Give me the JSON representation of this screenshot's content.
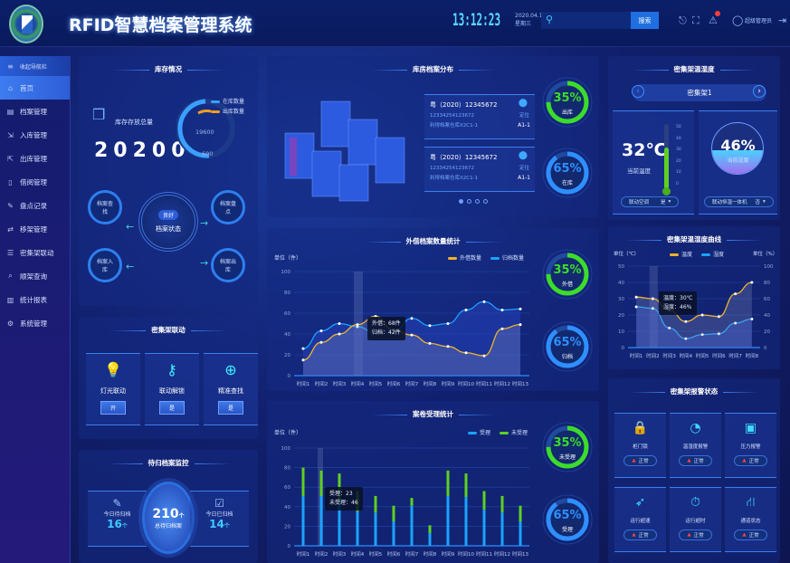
{
  "header": {
    "title": "RFID智慧档案管理系统",
    "time": "13:12:23",
    "date": "2020.04.13",
    "weekday": "星期三",
    "search_placeholder": "",
    "search_label": "搜索",
    "user": "超级管理员",
    "notification_count_visible": true
  },
  "sidebar": {
    "collapse_label": "收起导航栏",
    "items": [
      {
        "label": "首页",
        "icon": "home-icon",
        "active": true
      },
      {
        "label": "档案管理",
        "icon": "file-icon"
      },
      {
        "label": "入库管理",
        "icon": "inbound-icon"
      },
      {
        "label": "出库管理",
        "icon": "outbound-icon"
      },
      {
        "label": "借阅管理",
        "icon": "borrow-icon"
      },
      {
        "label": "盘点记录",
        "icon": "pencil-icon"
      },
      {
        "label": "移架管理",
        "icon": "move-icon"
      },
      {
        "label": "密集架联动",
        "icon": "shelf-icon"
      },
      {
        "label": "顺架查询",
        "icon": "query-icon"
      },
      {
        "label": "统计报表",
        "icon": "chart-icon"
      },
      {
        "label": "系统管理",
        "icon": "settings-icon"
      }
    ]
  },
  "inventory": {
    "title": "库存情况",
    "total_label": "库存存放总量",
    "total": "20200",
    "legend_in": "在库数量",
    "legend_out": "出库数量",
    "in_value": "19600",
    "out_value": "600",
    "status_badge": "良好",
    "status_label": "档案状态",
    "nodes": [
      "档案查找",
      "档案盘点",
      "档案入库",
      "档案出库"
    ]
  },
  "linkage": {
    "title": "密集架联动",
    "items": [
      {
        "label": "灯光联动",
        "value": "开",
        "icon": "bulb-icon"
      },
      {
        "label": "联动解锁",
        "value": "是",
        "icon": "key-icon"
      },
      {
        "label": "精准查找",
        "value": "是",
        "icon": "locate-plus-icon"
      }
    ]
  },
  "pending": {
    "title": "待归档案监控",
    "today_pending_label": "今日待归档",
    "today_pending": "16",
    "total": "210",
    "total_label": "总待归档案",
    "today_done_label": "今日已归档",
    "today_done": "14",
    "unit": "个"
  },
  "distribution": {
    "title": "库房档案分布",
    "records": [
      {
        "code": "粤（2020）12345672",
        "sub": "12334254123672",
        "location": "利得档案仓库X2C1-1",
        "pos_label": "定位",
        "pos": "A1-1"
      },
      {
        "code": "粤（2020）12345672",
        "sub": "12334254123672",
        "location": "利得档案仓库X2C1-1",
        "pos_label": "定位",
        "pos": "A1-1"
      }
    ],
    "carousel_pages": 4,
    "carousel_active": 0,
    "rings": [
      {
        "pct": "35%",
        "label": "出库",
        "color": "#3cdc2a",
        "value": 35
      },
      {
        "pct": "65%",
        "label": "在库",
        "color": "#2e8fff",
        "value": 65
      }
    ]
  },
  "lend": {
    "title": "外借档案数量统计",
    "unit_label": "单位（件）",
    "rings": [
      {
        "pct": "35%",
        "label": "外借",
        "color": "#3cdc2a",
        "value": 35
      },
      {
        "pct": "65%",
        "label": "归档",
        "color": "#2e8fff",
        "value": 65
      }
    ],
    "tooltip": [
      "外借：68件",
      "归档：42件"
    ]
  },
  "accept": {
    "title": "案卷受理统计",
    "unit_label": "单位（件）",
    "rings": [
      {
        "pct": "35%",
        "label": "未受理",
        "color": "#3cdc2a",
        "value": 35
      },
      {
        "pct": "65%",
        "label": "受理",
        "color": "#2e8fff",
        "value": 65
      }
    ],
    "tooltip": [
      "受理：23",
      "未受理：46"
    ]
  },
  "climate": {
    "title": "密集架温湿度",
    "shelf": "密集架1",
    "temp": "32℃",
    "temp_label": "当前温度",
    "temp_ticks": [
      "50",
      "40",
      "30",
      "20",
      "10",
      "0"
    ],
    "temp_level": 32,
    "humidity": "46%",
    "humidity_label": "当前湿度",
    "humidity_level": 46,
    "ac_label": "联动空调",
    "ac_value": "是",
    "dehum_label": "联动恒湿一体机",
    "dehum_value": "否"
  },
  "curve": {
    "title": "密集架温湿度曲线",
    "unit_left": "单位（℃）",
    "unit_right": "单位（%）",
    "tooltip": [
      "温度：30℃",
      "湿度：46%"
    ]
  },
  "alarm": {
    "title": "密集架报警状态",
    "items": [
      {
        "label": "柜门锁",
        "status": "正常",
        "icon": "lock-icon"
      },
      {
        "label": "温湿度报警",
        "status": "正常",
        "icon": "gauge-icon"
      },
      {
        "label": "压力报警",
        "status": "正常",
        "icon": "meter-icon"
      },
      {
        "label": "运行超速",
        "status": "正常",
        "icon": "rocket-icon"
      },
      {
        "label": "运行超时",
        "status": "正常",
        "icon": "stopwatch-icon"
      },
      {
        "label": "通道状态",
        "status": "正常",
        "icon": "road-icon"
      }
    ]
  },
  "chart_data": [
    {
      "type": "line",
      "title": "外借档案数量统计",
      "ylabel": "单位（件）",
      "ylim": [
        0,
        100
      ],
      "yticks": [
        0,
        20,
        40,
        60,
        80,
        100
      ],
      "grid": true,
      "legend": "top-right",
      "categories": [
        "时间1",
        "时间2",
        "时间3",
        "时间4",
        "时间5",
        "时间6",
        "时间7",
        "时间8",
        "时间9",
        "时间10",
        "时间11",
        "时间12",
        "时间13"
      ],
      "series": [
        {
          "name": "外借数量",
          "color": "#f0b429",
          "values": [
            15,
            32,
            40,
            49,
            57,
            44,
            39,
            31,
            28,
            22,
            19,
            45,
            49
          ]
        },
        {
          "name": "归档数量",
          "color": "#1aa3ff",
          "values": [
            26,
            43,
            50,
            47,
            41,
            42,
            55,
            48,
            50,
            63,
            71,
            63,
            64
          ]
        }
      ]
    },
    {
      "type": "bar",
      "stacked": true,
      "title": "案卷受理统计",
      "ylabel": "单位（件）",
      "ylim": [
        0,
        100
      ],
      "yticks": [
        0,
        20,
        40,
        60,
        80,
        100
      ],
      "grid": true,
      "legend": "top-right",
      "categories": [
        "时间1",
        "时间2",
        "时间3",
        "时间4",
        "时间5",
        "时间6",
        "时间7",
        "时间8",
        "时间9",
        "时间10",
        "时间11",
        "时间12",
        "时间13"
      ],
      "series": [
        {
          "name": "受理",
          "color": "#1aa3ff",
          "values": [
            51,
            51,
            45,
            35,
            34,
            25,
            41,
            13,
            51,
            50,
            37,
            34,
            25
          ]
        },
        {
          "name": "未受理",
          "color": "#5fd020",
          "values": [
            29,
            26,
            29,
            21,
            17,
            16,
            8,
            8,
            26,
            24,
            19,
            17,
            16
          ]
        }
      ]
    },
    {
      "type": "line",
      "title": "密集架温湿度曲线",
      "ylabel": "单位（℃）",
      "y2label": "单位（%）",
      "ylim": [
        0,
        50
      ],
      "y2lim": [
        0,
        100
      ],
      "yticks": [
        0,
        10,
        20,
        30,
        40,
        50
      ],
      "y2ticks": [
        0,
        20,
        40,
        60,
        80,
        100
      ],
      "grid": true,
      "legend": "top",
      "categories": [
        "时间1",
        "时间2",
        "时间3",
        "时间4",
        "时间5",
        "时间6",
        "时间7",
        "时间8"
      ],
      "series": [
        {
          "name": "温度",
          "axis": "left",
          "color": "#f0b429",
          "values": [
            31,
            30,
            23,
            16,
            20,
            19,
            33,
            40
          ]
        },
        {
          "name": "湿度",
          "axis": "right",
          "color": "#1aa3ff",
          "values": [
            50,
            48,
            24,
            11,
            16,
            17,
            30,
            35
          ]
        }
      ]
    }
  ]
}
